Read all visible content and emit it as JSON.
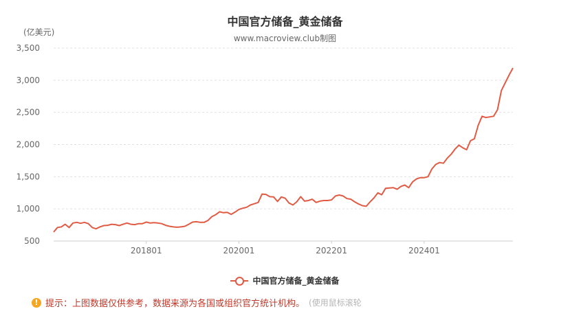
{
  "title": "中国官方储备_黄金储备",
  "subtitle": "www.macroview.club制图",
  "unit_label": "(亿美元)",
  "legend": {
    "label": "中国官方储备_黄金储备",
    "color": "#e15a44"
  },
  "notice": {
    "icon": "info-icon",
    "text": "提示：上图数据仅供参考，数据来源为各国或组织官方统计机构。",
    "hint": "(使用鼠标滚轮"
  },
  "chart_data": {
    "type": "line",
    "title": "中国官方储备_黄金储备",
    "xlabel": "",
    "ylabel": "(亿美元)",
    "ylim": [
      500,
      3500
    ],
    "yticks": [
      500,
      1000,
      1500,
      2000,
      2500,
      3000,
      3500
    ],
    "ytick_labels": [
      "500",
      "1,000",
      "1,500",
      "2,000",
      "2,500",
      "3,000",
      "3,500"
    ],
    "xtick_labels": [
      "201801",
      "202001",
      "202201",
      "202401"
    ],
    "grid": true,
    "legend_position": "bottom-center",
    "x_start": "2016-01",
    "x_end": "2025-12",
    "series": [
      {
        "name": "中国官方储备_黄金储备",
        "color": "#e15a44",
        "values": [
          640,
          710,
          720,
          760,
          710,
          780,
          790,
          775,
          790,
          770,
          710,
          690,
          720,
          740,
          745,
          760,
          755,
          740,
          760,
          780,
          760,
          755,
          770,
          770,
          795,
          780,
          785,
          780,
          770,
          745,
          730,
          720,
          715,
          720,
          730,
          760,
          795,
          800,
          790,
          790,
          820,
          880,
          910,
          955,
          940,
          945,
          915,
          950,
          990,
          1010,
          1025,
          1060,
          1080,
          1100,
          1230,
          1225,
          1190,
          1185,
          1115,
          1185,
          1165,
          1090,
          1060,
          1110,
          1190,
          1120,
          1130,
          1150,
          1100,
          1120,
          1130,
          1130,
          1140,
          1200,
          1215,
          1200,
          1160,
          1150,
          1110,
          1075,
          1050,
          1040,
          1110,
          1170,
          1250,
          1220,
          1320,
          1325,
          1330,
          1305,
          1350,
          1370,
          1330,
          1420,
          1465,
          1485,
          1485,
          1500,
          1620,
          1690,
          1720,
          1710,
          1790,
          1850,
          1930,
          1990,
          1950,
          1920,
          2060,
          2090,
          2300,
          2440,
          2420,
          2430,
          2440,
          2540,
          2840,
          2960,
          3080,
          3190
        ]
      }
    ]
  }
}
